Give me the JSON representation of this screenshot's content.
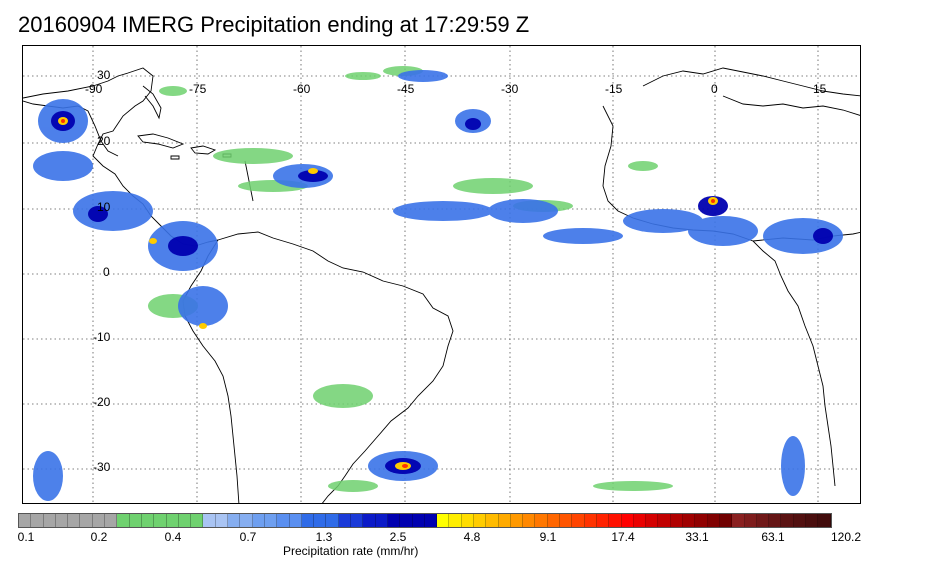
{
  "title": "20160904 IMERG Precipitation ending at 17:29:59 Z",
  "map": {
    "lon_labels": [
      "-90",
      "-75",
      "-60",
      "-45",
      "-30",
      "-15",
      "0",
      "15"
    ],
    "lat_labels": [
      "30",
      "20",
      "10",
      "0",
      "-10",
      "-20",
      "-30"
    ],
    "lon_range": [
      -98,
      22
    ],
    "lat_range": [
      35,
      -36
    ],
    "grid": "dotted",
    "coastline_color": "#000000"
  },
  "colorbar": {
    "title": "Precipitation rate (mm/hr)",
    "colors": [
      "#a6a6a6",
      "#a6a6a6",
      "#a6a6a6",
      "#a6a6a6",
      "#a6a6a6",
      "#a6a6a6",
      "#a6a6a6",
      "#a6a6a6",
      "#6fd16f",
      "#6fd16f",
      "#6fd16f",
      "#6fd16f",
      "#6fd16f",
      "#6fd16f",
      "#6fd16f",
      "#a9c4f3",
      "#a9c4f3",
      "#86aef0",
      "#86aef0",
      "#6e9ff0",
      "#6e9ff0",
      "#5a8ff0",
      "#5a8ff0",
      "#2f6be8",
      "#2f6be8",
      "#2f6be8",
      "#1a3ad8",
      "#1a3ad8",
      "#0b1ac8",
      "#0b1ac8",
      "#0000b0",
      "#0000b0",
      "#0000b0",
      "#0000b0",
      "#ffff00",
      "#ffee00",
      "#ffdd00",
      "#ffcc00",
      "#ffbb00",
      "#ffaa00",
      "#ff9900",
      "#ff8800",
      "#ff7700",
      "#ff6600",
      "#ff5500",
      "#ff4400",
      "#ff3300",
      "#ff2200",
      "#ff1100",
      "#ff0000",
      "#ea0000",
      "#d40000",
      "#c10000",
      "#b00000",
      "#a00000",
      "#900000",
      "#800000",
      "#700000",
      "#8a2020",
      "#7e1c1c",
      "#701818",
      "#651515",
      "#5a1212",
      "#521010",
      "#4a0e0e",
      "#420c0c"
    ],
    "ticks": [
      "0.1",
      "0.2",
      "0.4",
      "0.7",
      "1.3",
      "2.5",
      "4.8",
      "9.1",
      "17.4",
      "33.1",
      "63.1",
      "120.2"
    ]
  }
}
